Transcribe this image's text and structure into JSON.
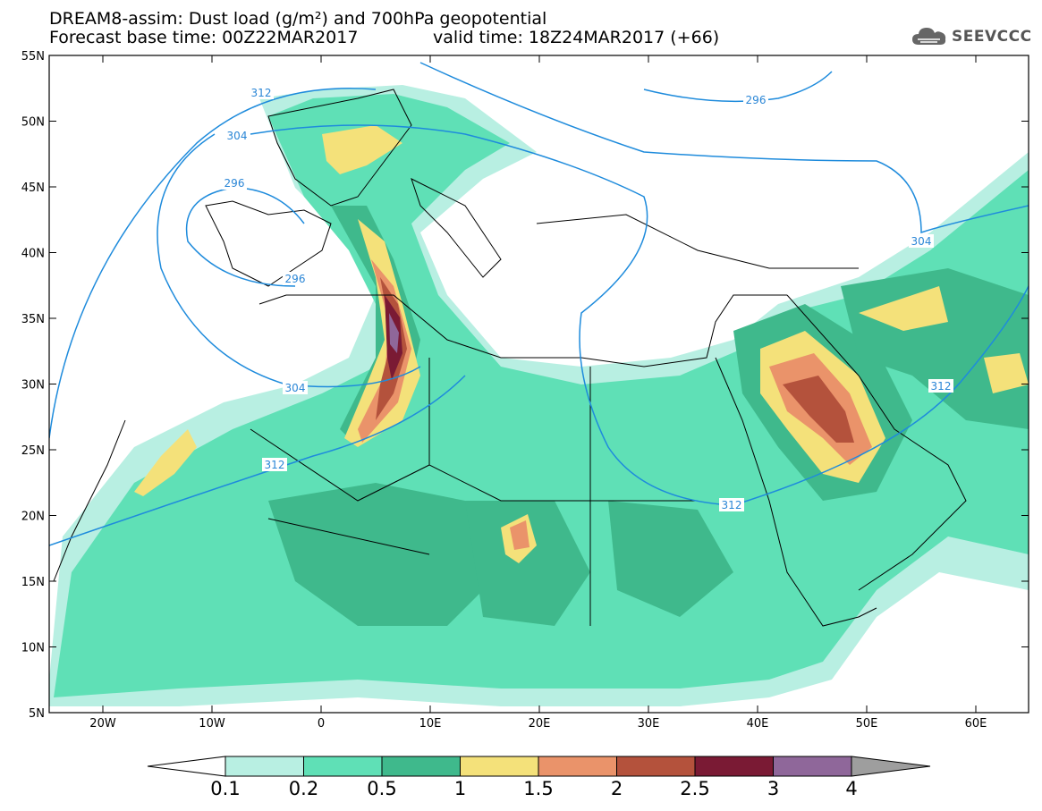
{
  "header": {
    "title_line1": "DREAM8-assim: Dust load (g/m²) and 700hPa geopotential",
    "title_line2": "Forecast base time: 00Z22MAR2017",
    "valid_time": "valid time: 18Z24MAR2017 (+66)",
    "logo_text": "SEEVCCC"
  },
  "map": {
    "lat_ticks": [
      "55N",
      "50N",
      "45N",
      "40N",
      "35N",
      "30N",
      "25N",
      "20N",
      "15N",
      "10N",
      "5N"
    ],
    "lon_ticks": [
      "20W",
      "10W",
      "0",
      "10E",
      "20E",
      "30E",
      "40E",
      "50E",
      "60E"
    ],
    "contour_labels": [
      "312",
      "304",
      "296",
      "296",
      "304",
      "312",
      "312",
      "312",
      "304",
      "296"
    ]
  },
  "legend": {
    "labels": [
      "0.1",
      "0.2",
      "0.5",
      "1",
      "1.5",
      "2",
      "2.5",
      "3",
      "4"
    ],
    "colors": [
      "#b8efe2",
      "#5fe0b6",
      "#3fb98c",
      "#f4e17a",
      "#ea936a",
      "#b4523c",
      "#7a1a34",
      "#8f679a"
    ],
    "min_arrow_color": "#ffffff",
    "max_arrow_color": "#9e9e9e"
  }
}
